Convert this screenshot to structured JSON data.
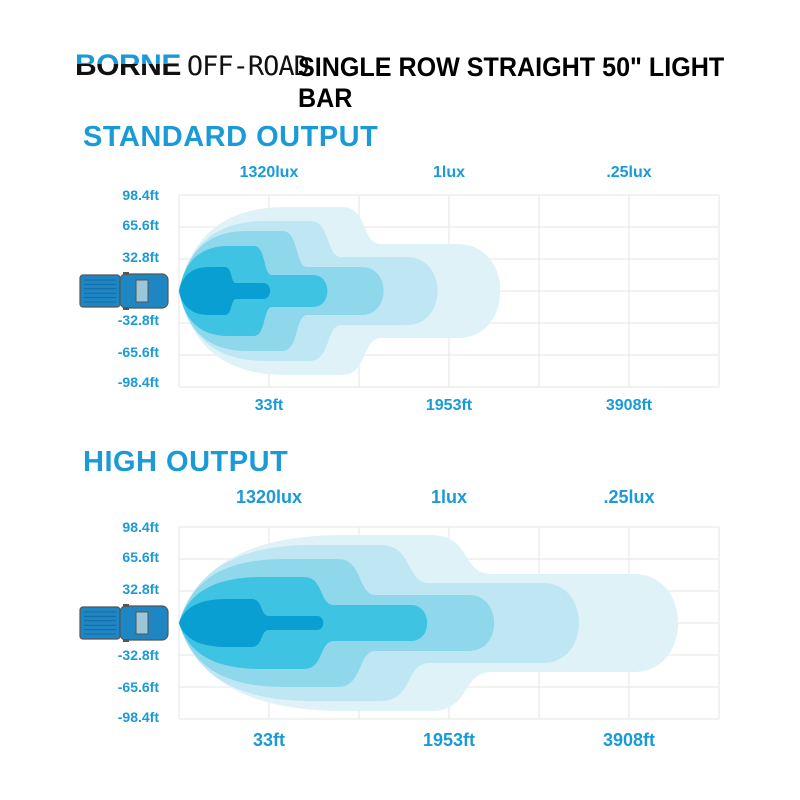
{
  "brand": {
    "name_bold": "BORNE",
    "name_light": "OFF-ROAD"
  },
  "title": "SINGLE ROW STRAIGHT 50\" LIGHT BAR",
  "colors": {
    "accent": "#1a9ad6",
    "beam_layers": [
      "#dff2f8",
      "#bfe7f3",
      "#8fd8ec",
      "#3fc3e3",
      "#0a9fd2"
    ],
    "truck": "#1f86c4"
  },
  "charts": [
    {
      "heading": "STANDARD OUTPUT",
      "lux_labels": [
        "1320lux",
        "1lux",
        ".25lux"
      ],
      "y_labels": [
        "98.4ft",
        "65.6ft",
        "32.8ft",
        "-32.8ft",
        "-65.6ft",
        "-98.4ft"
      ],
      "distance_labels": [
        "33ft",
        "1953ft",
        "3908ft"
      ]
    },
    {
      "heading": "HIGH OUTPUT",
      "lux_labels": [
        "1320lux",
        "1lux",
        ".25lux"
      ],
      "y_labels": [
        "98.4ft",
        "65.6ft",
        "32.8ft",
        "-32.8ft",
        "-65.6ft",
        "-98.4ft"
      ],
      "distance_labels": [
        "33ft",
        "1953ft",
        "3908ft"
      ]
    }
  ]
}
